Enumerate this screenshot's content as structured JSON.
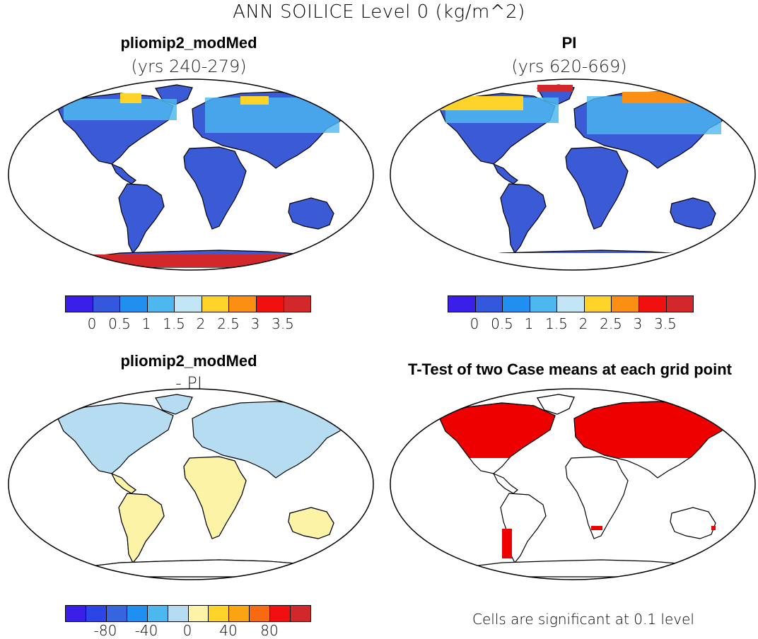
{
  "title": "ANN SOILICE Level 0 (kg/m^2)",
  "panels": [
    {
      "title": "pliomip2_modMed",
      "subtitle": "(yrs 240-279)"
    },
    {
      "title": "PI",
      "subtitle": "(yrs 620-669)"
    },
    {
      "title": "pliomip2_modMed",
      "subtitle": "- PI"
    },
    {
      "title": "T-Test of two Case means at each grid point",
      "subtitle": ""
    }
  ],
  "colorbar_abs": {
    "colors": [
      "#3b1ee8",
      "#3358dd",
      "#1f8ff0",
      "#4db8f0",
      "#c3e6f7",
      "#fdd32a",
      "#fb8f13",
      "#f01010",
      "#d2282c"
    ],
    "tick_labels": [
      "0",
      "0.5",
      "1",
      "1.5",
      "2",
      "2.5",
      "3",
      "3.5"
    ]
  },
  "colorbar_diff": {
    "colors": [
      "#3b1ee8",
      "#2b45e6",
      "#3566dd",
      "#1f8ff0",
      "#4db8f0",
      "#b6dcf2",
      "#fdf3a6",
      "#fdd32a",
      "#fba412",
      "#f86a12",
      "#f01010",
      "#d2282c"
    ],
    "tick_labels": [
      "-80",
      "-40",
      "0",
      "40",
      "80"
    ]
  },
  "colors": {
    "land_base": "#3a5ad6",
    "diff_north": "#b6dcf2",
    "diff_south": "#fdf3a6",
    "significant": "#ee0000",
    "outline": "#000000"
  },
  "significance_note": "Cells are significant at 0.1 level"
}
